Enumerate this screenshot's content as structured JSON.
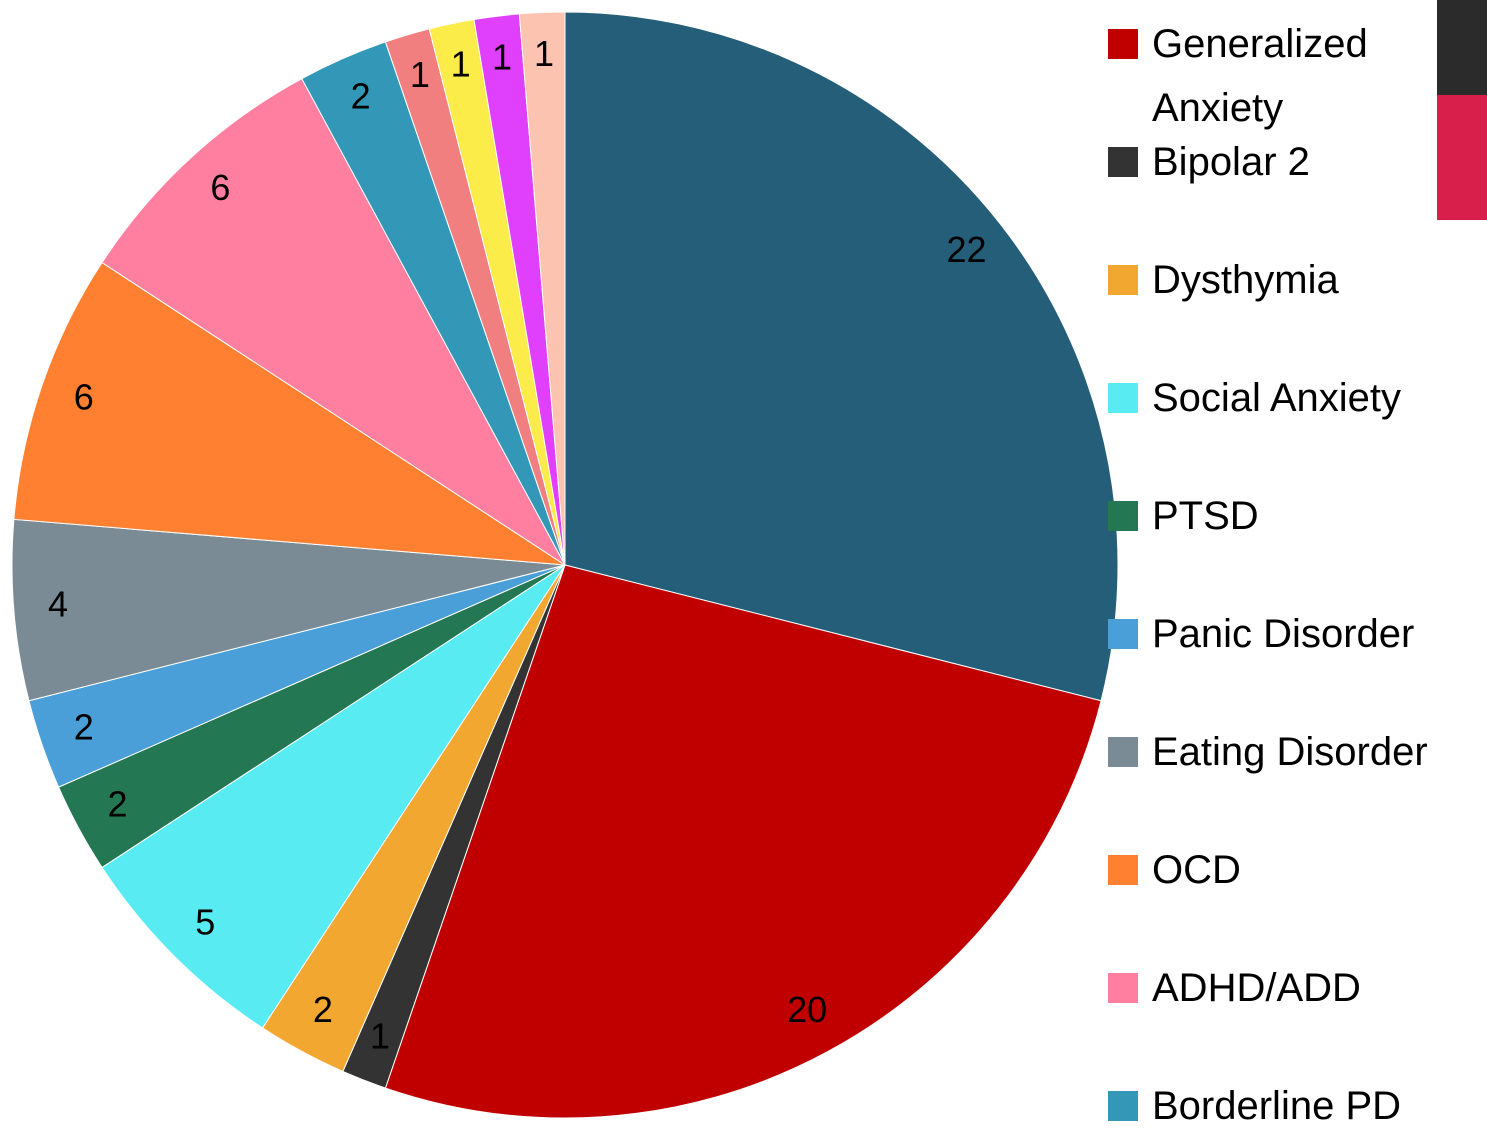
{
  "chart_data": {
    "type": "pie",
    "categories": [
      null,
      "Generalized Anxiety",
      "Bipolar 2",
      "Dysthymia",
      "Social Anxiety",
      "PTSD",
      "Panic Disorder",
      "Eating Disorder",
      "OCD",
      "ADHD/ADD",
      "Borderline PD",
      null,
      null,
      null,
      null
    ],
    "values": [
      22,
      20,
      1,
      2,
      5,
      2,
      2,
      4,
      6,
      6,
      2,
      1,
      1,
      1,
      1
    ],
    "colors": [
      "#255e79",
      "#c00000",
      "#333333",
      "#f2a830",
      "#58ecf2",
      "#237853",
      "#4a9fd8",
      "#7b8b95",
      "#ff8030",
      "#ff7fa0",
      "#3398b7",
      "#f27f7f",
      "#fcec4a",
      "#e040fb",
      "#fcc3b0"
    ],
    "legend": "right"
  }
}
